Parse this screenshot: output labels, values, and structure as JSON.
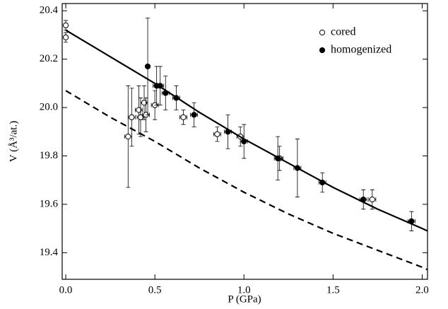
{
  "chart_data": {
    "type": "scatter",
    "xlabel": "P (GPa)",
    "ylabel": "V (Å³/at.)",
    "xlim": [
      -0.02,
      2.03
    ],
    "ylim": [
      19.29,
      20.43
    ],
    "xticks": [
      {
        "value": 0,
        "label": "0.0"
      },
      0.5,
      {
        "value": 1,
        "label": "1.0"
      },
      1.5,
      {
        "value": 2,
        "label": "2.0"
      }
    ],
    "yticks": [
      19.4,
      19.6,
      19.8,
      {
        "value": 20,
        "label": "20.0"
      },
      20.2,
      20.4
    ],
    "legend": "upper right",
    "series": [
      {
        "name": "cored",
        "marker": "open",
        "color": "#000000",
        "x": [
          0.0,
          0.0,
          0.35,
          0.37,
          0.41,
          0.42,
          0.44,
          0.45,
          0.5,
          0.66,
          0.85,
          0.98,
          1.2,
          1.72
        ],
        "values": [
          20.34,
          20.29,
          19.88,
          19.96,
          19.99,
          19.96,
          20.02,
          19.97,
          20.01,
          19.96,
          19.89,
          19.88,
          19.79,
          19.62
        ],
        "errors": [
          0.02,
          0.02,
          0.21,
          0.12,
          0.1,
          0.08,
          0.07,
          0.07,
          0.06,
          0.03,
          0.03,
          0.04,
          0.05,
          0.04
        ],
        "x_errors": [
          0.01,
          0.01,
          0.02,
          0.02,
          0.02,
          0.02,
          0.02,
          0.02,
          0.02,
          0.02,
          0.02,
          0.02,
          0.02,
          0.02
        ]
      },
      {
        "name": "homogenized",
        "marker": "filled",
        "color": "#000000",
        "x": [
          0.46,
          0.51,
          0.53,
          0.56,
          0.62,
          0.72,
          0.91,
          1.0,
          1.19,
          1.3,
          1.44,
          1.67,
          1.94
        ],
        "values": [
          20.17,
          20.09,
          20.09,
          20.06,
          20.04,
          19.97,
          19.9,
          19.86,
          19.79,
          19.75,
          19.69,
          19.62,
          19.53
        ],
        "errors": [
          0.2,
          0.08,
          0.08,
          0.07,
          0.05,
          0.05,
          0.07,
          0.07,
          0.09,
          0.12,
          0.04,
          0.04,
          0.04
        ],
        "x_errors": [
          0.01,
          0.02,
          0.02,
          0.02,
          0.02,
          0.02,
          0.02,
          0.02,
          0.02,
          0.02,
          0.02,
          0.02,
          0.02
        ]
      },
      {
        "marker": "line",
        "style": "solid",
        "color": "#000000",
        "x": [
          0,
          0.25,
          0.5,
          0.75,
          1.0,
          1.25,
          1.5,
          1.75,
          2.0,
          2.03
        ],
        "values": [
          20.32,
          20.21,
          20.1,
          19.98,
          19.87,
          19.77,
          19.67,
          19.58,
          19.5,
          19.49
        ]
      },
      {
        "marker": "line",
        "style": "dashed",
        "color": "#000000",
        "x": [
          0,
          0.25,
          0.5,
          0.75,
          1.0,
          1.25,
          1.5,
          1.75,
          2.0,
          2.03
        ],
        "values": [
          20.07,
          19.96,
          19.86,
          19.75,
          19.65,
          19.56,
          19.48,
          19.41,
          19.34,
          19.33
        ]
      }
    ]
  }
}
